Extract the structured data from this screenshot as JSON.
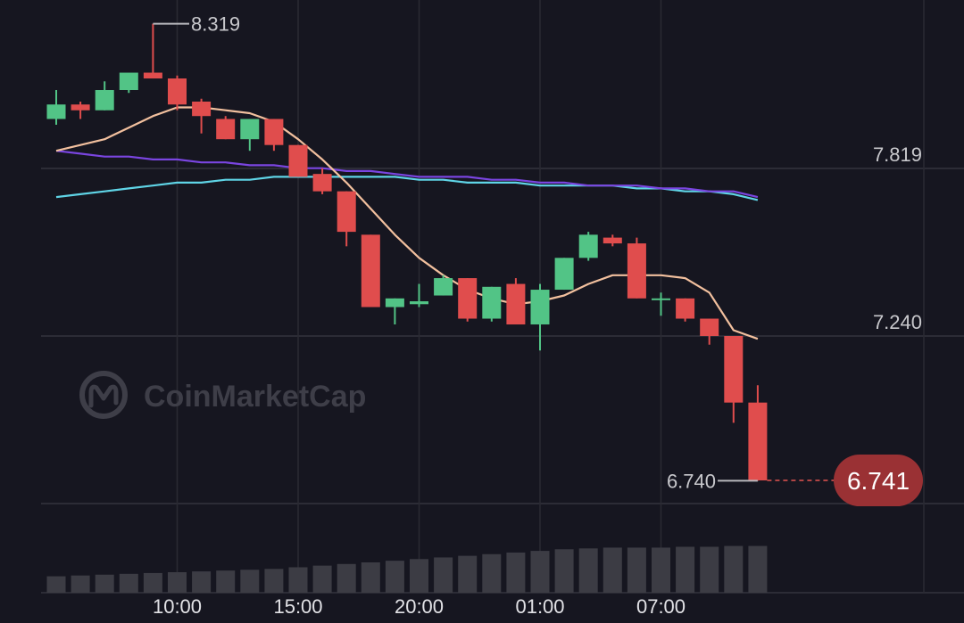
{
  "watermark": "CoinMarketCap",
  "chart_data": {
    "type": "candlestick",
    "ylim": [
      6.5,
      8.4
    ],
    "y_ticks": [
      7.819,
      7.24
    ],
    "y_tick_labels": [
      "7.819",
      "7.240"
    ],
    "x_tick_labels": [
      {
        "label": "10:00",
        "index": 5
      },
      {
        "label": "15:00",
        "index": 10
      },
      {
        "label": "20:00",
        "index": 15
      },
      {
        "label": "01:00",
        "index": 20
      },
      {
        "label": "07:00",
        "index": 25
      }
    ],
    "high_marker": {
      "label": "8.319",
      "value": 8.319
    },
    "low_marker": {
      "label": "6.740",
      "value": 6.74
    },
    "last_price": {
      "label": "6.741",
      "value": 6.741
    },
    "colors": {
      "up": "#52c486",
      "down": "#e04d4d",
      "ma_fast": "#f2c09e",
      "ma_mid": "#7a45e0",
      "ma_slow": "#5fd4e6",
      "volume": "#3c3c44"
    },
    "candles": [
      {
        "o": 7.99,
        "h": 8.09,
        "c": 8.04,
        "l": 7.97
      },
      {
        "o": 8.04,
        "h": 8.05,
        "c": 8.02,
        "l": 7.99
      },
      {
        "o": 8.02,
        "h": 8.12,
        "c": 8.09,
        "l": 8.02
      },
      {
        "o": 8.09,
        "h": 8.14,
        "c": 8.15,
        "l": 8.08
      },
      {
        "o": 8.15,
        "h": 8.319,
        "c": 8.13,
        "l": 8.13
      },
      {
        "o": 8.13,
        "h": 8.14,
        "c": 8.04,
        "l": 8.02
      },
      {
        "o": 8.05,
        "h": 8.06,
        "c": 8.0,
        "l": 7.94
      },
      {
        "o": 7.99,
        "h": 8.0,
        "c": 7.92,
        "l": 7.92
      },
      {
        "o": 7.92,
        "h": 7.99,
        "c": 7.99,
        "l": 7.88
      },
      {
        "o": 7.99,
        "h": 7.99,
        "c": 7.9,
        "l": 7.88
      },
      {
        "o": 7.9,
        "h": 7.9,
        "c": 7.79,
        "l": 7.79
      },
      {
        "o": 7.8,
        "h": 7.82,
        "c": 7.74,
        "l": 7.73
      },
      {
        "o": 7.74,
        "h": 7.74,
        "c": 7.6,
        "l": 7.55
      },
      {
        "o": 7.59,
        "h": 7.59,
        "c": 7.34,
        "l": 7.34
      },
      {
        "o": 7.34,
        "h": 7.37,
        "c": 7.37,
        "l": 7.28
      },
      {
        "o": 7.35,
        "h": 7.42,
        "c": 7.36,
        "l": 7.34
      },
      {
        "o": 7.38,
        "h": 7.45,
        "c": 7.44,
        "l": 7.38
      },
      {
        "o": 7.44,
        "h": 7.44,
        "c": 7.3,
        "l": 7.29
      },
      {
        "o": 7.3,
        "h": 7.41,
        "c": 7.41,
        "l": 7.29
      },
      {
        "o": 7.42,
        "h": 7.44,
        "c": 7.28,
        "l": 7.28
      },
      {
        "o": 7.28,
        "h": 7.42,
        "c": 7.4,
        "l": 7.19
      },
      {
        "o": 7.4,
        "h": 7.51,
        "c": 7.51,
        "l": 7.4
      },
      {
        "o": 7.51,
        "h": 7.6,
        "c": 7.59,
        "l": 7.5
      },
      {
        "o": 7.58,
        "h": 7.59,
        "c": 7.56,
        "l": 7.55
      },
      {
        "o": 7.56,
        "h": 7.58,
        "c": 7.37,
        "l": 7.37
      },
      {
        "o": 7.37,
        "h": 7.39,
        "c": 7.37,
        "l": 7.31
      },
      {
        "o": 7.37,
        "h": 7.37,
        "c": 7.3,
        "l": 7.29
      },
      {
        "o": 7.3,
        "h": 7.3,
        "c": 7.24,
        "l": 7.21
      },
      {
        "o": 7.24,
        "h": 7.24,
        "c": 7.01,
        "l": 6.94
      },
      {
        "o": 7.01,
        "h": 7.07,
        "c": 6.741,
        "l": 6.74
      }
    ],
    "ma_fast": [
      7.88,
      7.9,
      7.92,
      7.96,
      8.0,
      8.03,
      8.03,
      8.02,
      8.01,
      7.98,
      7.92,
      7.85,
      7.77,
      7.68,
      7.59,
      7.51,
      7.45,
      7.4,
      7.37,
      7.35,
      7.36,
      7.38,
      7.42,
      7.45,
      7.45,
      7.45,
      7.44,
      7.39,
      7.26,
      7.23
    ],
    "ma_mid": [
      7.88,
      7.87,
      7.86,
      7.86,
      7.85,
      7.85,
      7.84,
      7.84,
      7.83,
      7.83,
      7.82,
      7.82,
      7.81,
      7.81,
      7.8,
      7.79,
      7.79,
      7.79,
      7.78,
      7.78,
      7.77,
      7.77,
      7.76,
      7.76,
      7.76,
      7.75,
      7.75,
      7.74,
      7.74,
      7.72
    ],
    "ma_slow": [
      7.72,
      7.73,
      7.74,
      7.75,
      7.76,
      7.77,
      7.77,
      7.78,
      7.78,
      7.79,
      7.79,
      7.79,
      7.79,
      7.79,
      7.79,
      7.78,
      7.78,
      7.77,
      7.77,
      7.77,
      7.76,
      7.76,
      7.76,
      7.76,
      7.75,
      7.75,
      7.74,
      7.74,
      7.73,
      7.71
    ],
    "volume": [
      20,
      21,
      22,
      23,
      24,
      25,
      26,
      27,
      28,
      29,
      31,
      33,
      35,
      37,
      39,
      41,
      43,
      45,
      47,
      49,
      51,
      53,
      54,
      55,
      55,
      55,
      56,
      56,
      57,
      57
    ]
  }
}
